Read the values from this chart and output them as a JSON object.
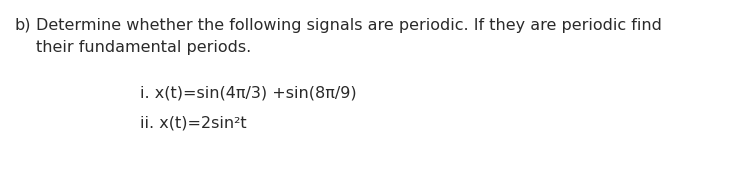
{
  "background_color": "#ffffff",
  "part_label": "b)",
  "line1": "Determine whether the following signals are periodic. If they are periodic find",
  "line2": "    their fundamental periods.",
  "item_i": "i. x(t)=sin(4π/3) +sin(8π/9)",
  "item_ii": "ii. x(t)=2sin²t",
  "font_size": 11.5,
  "font_color": "#2a2a2a",
  "font_family": "DejaVu Sans"
}
